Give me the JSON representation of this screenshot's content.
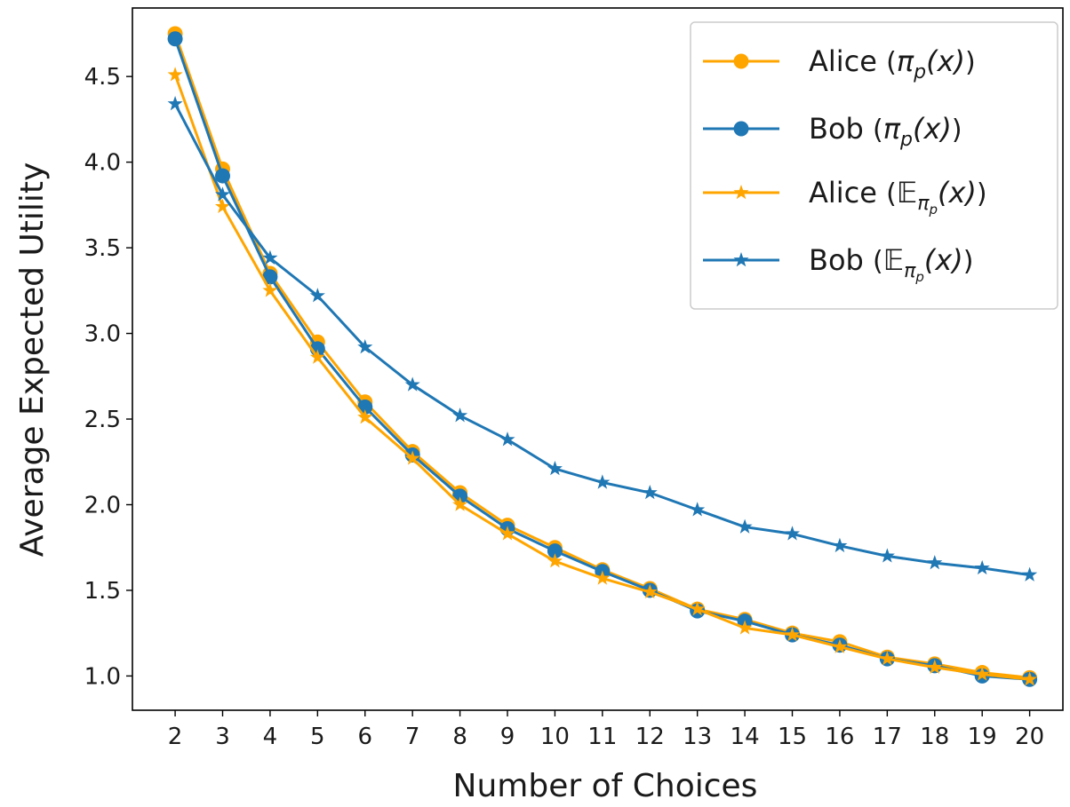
{
  "chart_data": {
    "type": "line",
    "title": "",
    "xlabel": "Number of Choices",
    "ylabel": "Average Expected Utility",
    "xlim": [
      1.1,
      20.7
    ],
    "ylim": [
      0.8,
      4.9
    ],
    "xticks": [
      2,
      3,
      4,
      5,
      6,
      7,
      8,
      9,
      10,
      11,
      12,
      13,
      14,
      15,
      16,
      17,
      18,
      19,
      20
    ],
    "yticks": [
      1.0,
      1.5,
      2.0,
      2.5,
      3.0,
      3.5,
      4.0,
      4.5
    ],
    "ytick_labels": [
      "1.0",
      "1.5",
      "2.0",
      "2.5",
      "3.0",
      "3.5",
      "4.0",
      "4.5"
    ],
    "grid": false,
    "legend_position": "top-right",
    "x": [
      2,
      3,
      4,
      5,
      6,
      7,
      8,
      9,
      10,
      11,
      12,
      13,
      14,
      15,
      16,
      17,
      18,
      19,
      20
    ],
    "series": [
      {
        "name": "Alice (π_p(x))",
        "legend_main": "Alice",
        "legend_open": "(",
        "legend_close": ")",
        "legend_math": "π",
        "legend_sub": "p",
        "legend_arg": "(x)",
        "color": "#FFA500",
        "marker": "circle",
        "values": [
          4.75,
          3.96,
          3.35,
          2.95,
          2.6,
          2.31,
          2.07,
          1.88,
          1.75,
          1.62,
          1.51,
          1.39,
          1.33,
          1.25,
          1.2,
          1.11,
          1.07,
          1.02,
          0.99
        ]
      },
      {
        "name": "Bob (π_p(x))",
        "legend_main": "Bob",
        "legend_open": "(",
        "legend_close": ")",
        "legend_math": "π",
        "legend_sub": "p",
        "legend_arg": "(x)",
        "color": "#1F77B4",
        "marker": "circle",
        "values": [
          4.72,
          3.92,
          3.33,
          2.91,
          2.57,
          2.29,
          2.05,
          1.86,
          1.73,
          1.61,
          1.5,
          1.38,
          1.32,
          1.24,
          1.18,
          1.1,
          1.06,
          1.0,
          0.98
        ]
      },
      {
        "name": "Alice (𝔼_{π_p}(x))",
        "legend_main": "Alice",
        "legend_open": "(",
        "legend_close": ")",
        "legend_math": "𝔼",
        "legend_sub": "π",
        "legend_subsub": "p",
        "legend_arg": "(x)",
        "color": "#FFA500",
        "marker": "star",
        "values": [
          4.51,
          3.74,
          3.25,
          2.86,
          2.51,
          2.27,
          2.0,
          1.83,
          1.67,
          1.57,
          1.49,
          1.39,
          1.28,
          1.24,
          1.17,
          1.1,
          1.05,
          1.01,
          0.98
        ]
      },
      {
        "name": "Bob (𝔼_{π_p}(x))",
        "legend_main": "Bob",
        "legend_open": "(",
        "legend_close": ")",
        "legend_math": "𝔼",
        "legend_sub": "π",
        "legend_subsub": "p",
        "legend_arg": "(x)",
        "color": "#1F77B4",
        "marker": "star",
        "values": [
          4.34,
          3.81,
          3.44,
          3.22,
          2.92,
          2.7,
          2.52,
          2.38,
          2.21,
          2.13,
          2.07,
          1.97,
          1.87,
          1.83,
          1.76,
          1.7,
          1.66,
          1.63,
          1.59
        ]
      }
    ]
  }
}
